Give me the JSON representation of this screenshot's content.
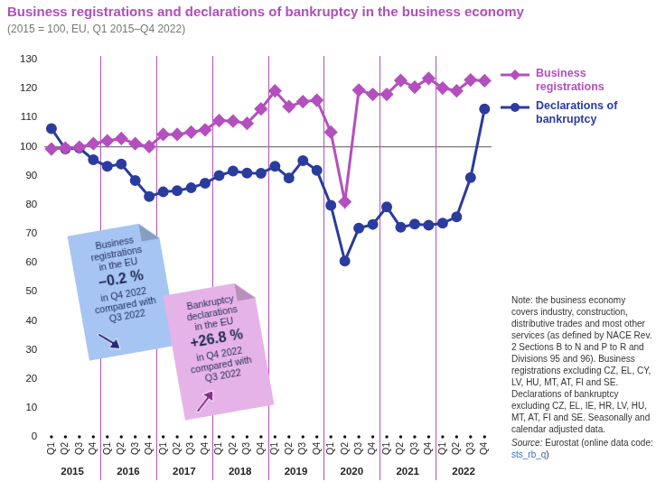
{
  "chart_data": {
    "type": "line",
    "title": "Business registrations and declarations of bankruptcy in the business economy",
    "subtitle": "(2015 = 100, EU, Q1 2015–Q4 2022)",
    "categories": [
      "Q1",
      "Q2",
      "Q3",
      "Q4",
      "Q1",
      "Q2",
      "Q3",
      "Q4",
      "Q1",
      "Q2",
      "Q3",
      "Q4",
      "Q1",
      "Q2",
      "Q3",
      "Q4",
      "Q1",
      "Q2",
      "Q3",
      "Q4",
      "Q1",
      "Q2",
      "Q3",
      "Q4",
      "Q1",
      "Q2",
      "Q3",
      "Q4",
      "Q1",
      "Q2",
      "Q3",
      "Q4"
    ],
    "years": [
      "2015",
      "2016",
      "2017",
      "2018",
      "2019",
      "2020",
      "2021",
      "2022"
    ],
    "series": [
      {
        "name": "Business registrations",
        "color": "#b44fbe",
        "marker": "diamond",
        "values": [
          99.2,
          99.5,
          99.8,
          101,
          102,
          102.8,
          101,
          100,
          104.2,
          104.2,
          105,
          105.8,
          109,
          108.8,
          108,
          113,
          119.2,
          113.8,
          115.5,
          116,
          105,
          81,
          119.5,
          118,
          118,
          122.8,
          120.5,
          123.5,
          120.2,
          119.2,
          123,
          122.7
        ]
      },
      {
        "name": "Declarations of bankruptcy",
        "color": "#2a3c9e",
        "marker": "circle",
        "values": [
          106.2,
          99.2,
          99.5,
          95.5,
          93.2,
          94,
          88.3,
          82.8,
          84.4,
          84.8,
          85.8,
          87.4,
          90,
          91.6,
          90.9,
          90.8,
          93.2,
          89.2,
          95.2,
          91.8,
          79.8,
          60.6,
          71.9,
          73.2,
          79.2,
          72.2,
          73.3,
          72.9,
          73.6,
          75.8,
          89.3,
          113
        ]
      }
    ],
    "ylim": [
      0,
      130
    ],
    "yticks": [
      0,
      10,
      20,
      30,
      40,
      50,
      60,
      70,
      80,
      90,
      100,
      110,
      120,
      130
    ],
    "baseline": 100,
    "grid": false,
    "legend": "right",
    "annotations": [
      {
        "text_above": [
          "Business",
          "registrations",
          "in the EU"
        ],
        "value": "−0.2 %",
        "text_below": [
          "in Q4 2022",
          "compared with",
          "Q3 2022"
        ],
        "color": "#a6c5f2"
      },
      {
        "text_above": [
          "Bankruptcy",
          "declarations",
          "in the EU"
        ],
        "value": "+26.8 %",
        "text_below": [
          "in Q4 2022",
          "compared with",
          "Q3 2022"
        ],
        "color": "#e6b3e8"
      }
    ],
    "note": "Note: the business economy covers industry, construction, distributive trades and most other services (as defined by NACE Rev. 2 Sections B to N and P to R and Divisions 95 and 96). Business registrations excluding CZ, EL, CY, LV, HU, MT, AT, FI and SE. Declarations of bankruptcy excluding CZ, EL, IE, HR, LV, HU, MT, AT, FI and SE. Seasonally and calendar adjusted data.",
    "source": [
      "Source:",
      "Eurostat (online data code:",
      "sts_rb_q",
      ")"
    ]
  }
}
